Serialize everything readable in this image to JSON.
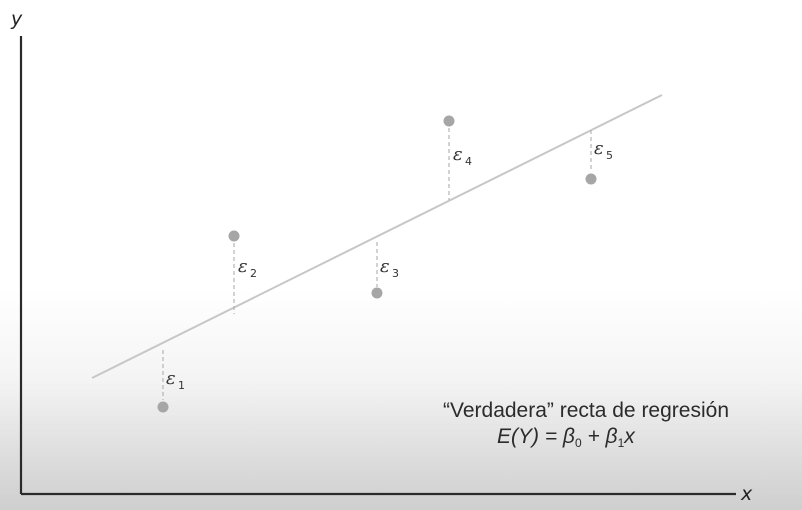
{
  "axes": {
    "x_label": "x",
    "y_label": "y"
  },
  "residuals": [
    {
      "symbol": "ε",
      "index": "1"
    },
    {
      "symbol": "ε",
      "index": "2"
    },
    {
      "symbol": "ε",
      "index": "3"
    },
    {
      "symbol": "ε",
      "index": "4"
    },
    {
      "symbol": "ε",
      "index": "5"
    }
  ],
  "caption": {
    "title": "“Verdadera” recta de regresión",
    "equation_lhs": "E(Y) = β",
    "beta0_sub": "0",
    "equation_mid": " + β",
    "beta1_sub": "1",
    "equation_rhs": "x"
  },
  "colors": {
    "axis": "#2a2a2a",
    "regression_line": "#c7c7c7",
    "points": "#a6a6a6",
    "residual_dash": "#b5b5b5"
  }
}
